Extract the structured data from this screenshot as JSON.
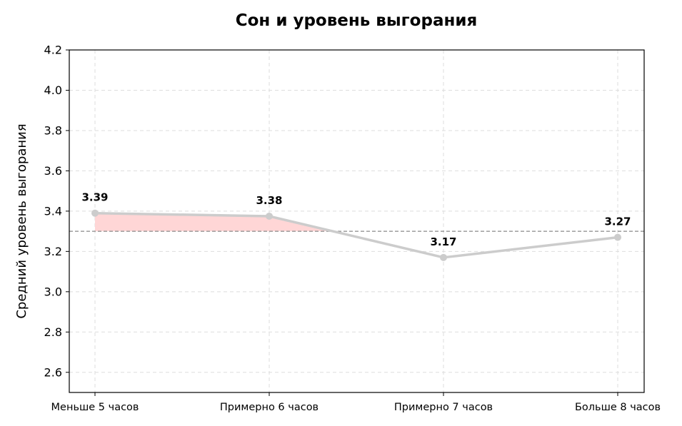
{
  "chart_data": {
    "type": "line",
    "title": "Сон и уровень выгорания",
    "xlabel": "",
    "ylabel": "Средний уровень выгорания",
    "categories": [
      "Меньше 5 часов",
      "Примерно 6 часов",
      "Примерно 7 часов",
      "Больше 8 часов"
    ],
    "series": [
      {
        "values": [
          3.39,
          3.375,
          3.17,
          3.27
        ],
        "labels": [
          "3.39",
          "3.38",
          "3.17",
          "3.27"
        ]
      }
    ],
    "yticks": [
      "2.6",
      "2.8",
      "3.0",
      "3.2",
      "3.4",
      "3.6",
      "3.8",
      "4.0",
      "4.2"
    ],
    "ylim": [
      2.5,
      4.2
    ],
    "reference_line": 3.3,
    "grid": true,
    "colors": {
      "line": "#cccccc",
      "fill": "#ffd6d6",
      "reference": "#888888",
      "grid": "#dddddd",
      "axis": "#000000"
    }
  }
}
